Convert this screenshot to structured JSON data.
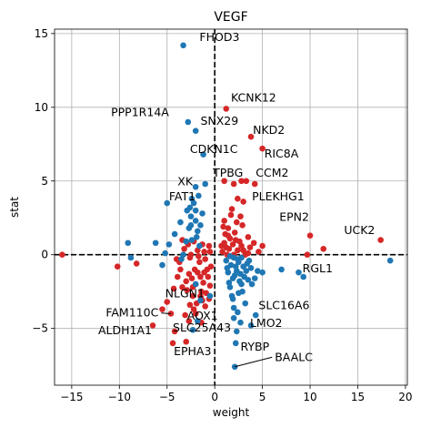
{
  "chart_data": {
    "type": "scatter",
    "title": "VEGF",
    "xlabel": "weight",
    "ylabel": "stat",
    "xlim": [
      -16.8,
      20.2
    ],
    "ylim": [
      -8.85,
      15.3
    ],
    "xticks": [
      -15,
      -10,
      -5,
      0,
      5,
      10,
      15,
      20
    ],
    "yticks": [
      -5,
      0,
      5,
      10,
      15
    ],
    "grid": true,
    "reference_lines": {
      "x": 0,
      "y": 0,
      "style": "dashed"
    },
    "colors": {
      "red": "#d62728",
      "blue": "#1f77b4"
    },
    "labels": [
      {
        "text": "FHOD3",
        "x": -3.3,
        "y": 14.2,
        "tx": -1.6,
        "ty": 14.5,
        "anchor": "start"
      },
      {
        "text": "KCNK12",
        "x": 1.2,
        "y": 9.9,
        "tx": 1.7,
        "ty": 10.4,
        "anchor": "start"
      },
      {
        "text": "PPP1R14A",
        "x": -2.8,
        "y": 9.0,
        "tx": -4.8,
        "ty": 9.4,
        "anchor": "end"
      },
      {
        "text": "SNX29",
        "x": -2.0,
        "y": 8.4,
        "tx": -1.5,
        "ty": 8.8,
        "anchor": "start"
      },
      {
        "text": "NKD2",
        "x": 3.8,
        "y": 8.0,
        "tx": 4.0,
        "ty": 8.2,
        "anchor": "start"
      },
      {
        "text": "RIC8A",
        "x": 5.0,
        "y": 7.2,
        "tx": 5.2,
        "ty": 6.6,
        "anchor": "start"
      },
      {
        "text": "CDKN1C",
        "x": -1.2,
        "y": 6.8,
        "tx": -2.6,
        "ty": 6.9,
        "anchor": "start"
      },
      {
        "text": "TPBG",
        "x": 1.0,
        "y": 5.0,
        "tx": -0.2,
        "ty": 5.3,
        "anchor": "start"
      },
      {
        "text": "CCM2",
        "x": 2.8,
        "y": 5.0,
        "tx": 4.3,
        "ty": 5.3,
        "anchor": "start"
      },
      {
        "text": "XK",
        "x": -2.0,
        "y": 4.6,
        "tx": -3.9,
        "ty": 4.7,
        "anchor": "start"
      },
      {
        "text": "FAT1",
        "x": -2.4,
        "y": 3.8,
        "tx": -4.8,
        "ty": 3.7,
        "anchor": "start"
      },
      {
        "text": "PLEKHG1",
        "x": 3.0,
        "y": 3.6,
        "tx": 3.9,
        "ty": 3.7,
        "anchor": "start"
      },
      {
        "text": "EPN2",
        "x": 10.0,
        "y": 1.3,
        "tx": 9.9,
        "ty": 2.3,
        "anchor": "end"
      },
      {
        "text": "UCK2",
        "x": 17.4,
        "y": 1.0,
        "tx": 16.8,
        "ty": 1.4,
        "anchor": "end"
      },
      {
        "text": "RGL1",
        "x": 9.3,
        "y": -1.5,
        "tx": 9.2,
        "ty": -1.2,
        "anchor": "start"
      },
      {
        "text": "NLGN1",
        "x": -2.0,
        "y": -3.1,
        "tx": -5.2,
        "ty": -2.9,
        "anchor": "start"
      },
      {
        "text": "FAM110C",
        "x": -4.6,
        "y": -4.0,
        "tx": -5.9,
        "ty": -4.2,
        "anchor": "end",
        "leader": true
      },
      {
        "text": "SLC16A6",
        "x": 4.3,
        "y": -4.1,
        "tx": 4.6,
        "ty": -3.7,
        "anchor": "start"
      },
      {
        "text": "AOX1",
        "x": -1.5,
        "y": -4.2,
        "tx": -2.9,
        "ty": -4.4,
        "anchor": "start"
      },
      {
        "text": "LMO2",
        "x": 3.8,
        "y": -4.8,
        "tx": 3.7,
        "ty": -4.9,
        "anchor": "start"
      },
      {
        "text": "ALDH1A1",
        "x": -6.4,
        "y": -4.8,
        "tx": -6.6,
        "ty": -5.4,
        "anchor": "end"
      },
      {
        "text": "SLC25A43",
        "x": -2.3,
        "y": -5.1,
        "tx": -4.4,
        "ty": -5.2,
        "anchor": "start"
      },
      {
        "text": "RYBP",
        "x": 2.2,
        "y": -6.0,
        "tx": 2.7,
        "ty": -6.5,
        "anchor": "start"
      },
      {
        "text": "EPHA3",
        "x": -4.4,
        "y": -6.0,
        "tx": -4.3,
        "ty": -6.8,
        "anchor": "start"
      },
      {
        "text": "BAALC",
        "x": 2.1,
        "y": -7.6,
        "tx": 6.3,
        "ty": -7.2,
        "anchor": "start",
        "leader": true
      }
    ],
    "points": {
      "red": [
        [
          -16.0,
          0.0
        ],
        [
          -10.2,
          -0.8
        ],
        [
          -8.2,
          -0.6
        ],
        [
          -5.0,
          -3.2
        ],
        [
          -6.5,
          -4.8
        ],
        [
          -5.5,
          -3.7
        ],
        [
          -4.6,
          -4.0
        ],
        [
          -4.2,
          -5.2
        ],
        [
          -4.4,
          -6.0
        ],
        [
          -3.0,
          -5.9
        ],
        [
          -3.1,
          -4.1
        ],
        [
          -2.6,
          -3.4
        ],
        [
          -2.3,
          -2.8
        ],
        [
          -2.0,
          -2.0
        ],
        [
          -1.4,
          -2.5
        ],
        [
          -1.0,
          -3.5
        ],
        [
          -1.5,
          -1.5
        ],
        [
          -2.6,
          -0.2
        ],
        [
          -3.4,
          1.0
        ],
        [
          -3.6,
          -1.0
        ],
        [
          -3.0,
          -1.8
        ],
        [
          -2.7,
          -1.3
        ],
        [
          -2.1,
          -1.0
        ],
        [
          -1.6,
          -0.5
        ],
        [
          -1.1,
          0.2
        ],
        [
          -0.8,
          -1.0
        ],
        [
          -0.5,
          -2.1
        ],
        [
          -0.6,
          0.6
        ],
        [
          -1.3,
          0.7
        ],
        [
          -1.8,
          0.3
        ],
        [
          -2.2,
          0.9
        ],
        [
          -3.2,
          0.4
        ],
        [
          -4.0,
          -0.3
        ],
        [
          -2.9,
          -2.4
        ],
        [
          -1.9,
          -3.3
        ],
        [
          -1.2,
          -1.9
        ],
        [
          -0.7,
          -1.5
        ],
        [
          -0.4,
          -0.8
        ],
        [
          -1.5,
          -2.8
        ],
        [
          -2.4,
          -1.6
        ],
        [
          -1.0,
          -0.3
        ],
        [
          -1.8,
          -1.2
        ],
        [
          -2.5,
          0.0
        ],
        [
          -0.9,
          -2.6
        ],
        [
          -3.4,
          -2.2
        ],
        [
          -2.0,
          -4.0
        ],
        [
          -1.4,
          -4.6
        ],
        [
          -2.7,
          -4.5
        ],
        [
          -0.6,
          -3.0
        ],
        [
          -1.7,
          -0.1
        ],
        [
          -3.7,
          -0.5
        ],
        [
          -2.3,
          -2.2
        ],
        [
          -1.1,
          -1.2
        ],
        [
          -0.5,
          0.2
        ],
        [
          -4.3,
          -2.3
        ],
        [
          -3.9,
          -1.5
        ],
        [
          -2.2,
          -3.7
        ],
        [
          -1.3,
          -3.1
        ],
        [
          -2.8,
          0.7
        ],
        [
          1.2,
          9.9
        ],
        [
          3.8,
          8.0
        ],
        [
          5.0,
          7.2
        ],
        [
          2.8,
          5.0
        ],
        [
          3.3,
          5.0
        ],
        [
          4.2,
          4.8
        ],
        [
          1.0,
          5.0
        ],
        [
          2.0,
          4.8
        ],
        [
          2.4,
          3.8
        ],
        [
          3.0,
          3.6
        ],
        [
          1.8,
          3.1
        ],
        [
          2.7,
          2.6
        ],
        [
          1.0,
          2.3
        ],
        [
          1.4,
          1.8
        ],
        [
          2.9,
          2.0
        ],
        [
          3.5,
          1.2
        ],
        [
          4.1,
          0.8
        ],
        [
          5.0,
          0.6
        ],
        [
          4.6,
          0.2
        ],
        [
          3.7,
          0.5
        ],
        [
          3.2,
          0.0
        ],
        [
          2.6,
          0.9
        ],
        [
          2.1,
          1.5
        ],
        [
          1.6,
          1.1
        ],
        [
          1.0,
          0.8
        ],
        [
          0.8,
          0.2
        ],
        [
          1.3,
          0.0
        ],
        [
          2.4,
          0.3
        ],
        [
          1.9,
          0.7
        ],
        [
          1.1,
          1.4
        ],
        [
          0.9,
          1.9
        ],
        [
          2.3,
          2.2
        ],
        [
          1.7,
          2.7
        ],
        [
          2.0,
          0.0
        ],
        [
          3.0,
          0.3
        ],
        [
          1.5,
          0.4
        ],
        [
          1.2,
          0.5
        ],
        [
          2.8,
          0.6
        ],
        [
          3.5,
          0.1
        ],
        [
          0.7,
          0.6
        ],
        [
          1.4,
          1.3
        ],
        [
          2.2,
          1.0
        ],
        [
          10.0,
          1.3
        ],
        [
          9.7,
          0.0
        ],
        [
          11.4,
          0.4
        ],
        [
          17.4,
          1.0
        ]
      ],
      "blue": [
        [
          -3.3,
          14.2
        ],
        [
          -2.8,
          9.0
        ],
        [
          -2.0,
          8.4
        ],
        [
          -1.2,
          6.8
        ],
        [
          -2.0,
          4.6
        ],
        [
          -2.4,
          3.8
        ],
        [
          -5.0,
          3.5
        ],
        [
          -2.9,
          3.0
        ],
        [
          -2.5,
          2.6
        ],
        [
          -2.0,
          2.3
        ],
        [
          -1.5,
          2.0
        ],
        [
          -2.7,
          1.8
        ],
        [
          -1.9,
          1.2
        ],
        [
          -3.0,
          0.9
        ],
        [
          -1.6,
          0.6
        ],
        [
          -2.2,
          3.5
        ],
        [
          -1.7,
          4.0
        ],
        [
          -3.6,
          2.2
        ],
        [
          -4.2,
          1.4
        ],
        [
          -4.8,
          0.7
        ],
        [
          -5.2,
          0.1
        ],
        [
          -3.5,
          -0.3
        ],
        [
          -5.5,
          -0.7
        ],
        [
          -9.1,
          0.8
        ],
        [
          -8.8,
          -0.2
        ],
        [
          -6.2,
          0.8
        ],
        [
          -1.3,
          2.8
        ],
        [
          -2.4,
          1.0
        ],
        [
          -1.0,
          4.8
        ],
        [
          -2.0,
          3.0
        ],
        [
          -2.5,
          2.0
        ],
        [
          -1.8,
          1.6
        ],
        [
          -2.6,
          3.2
        ],
        [
          -3.3,
          0.0
        ],
        [
          -2.0,
          -2.0
        ],
        [
          -1.5,
          -3.1
        ],
        [
          -1.8,
          -4.5
        ],
        [
          -2.3,
          -5.1
        ],
        [
          -0.5,
          -2.8
        ],
        [
          2.1,
          -7.6
        ],
        [
          2.2,
          -6.0
        ],
        [
          3.8,
          -4.8
        ],
        [
          4.3,
          -4.1
        ],
        [
          2.3,
          -5.2
        ],
        [
          2.7,
          -4.6
        ],
        [
          2.0,
          -3.6
        ],
        [
          3.2,
          -3.3
        ],
        [
          2.5,
          -2.6
        ],
        [
          1.6,
          -2.2
        ],
        [
          2.8,
          -2.0
        ],
        [
          3.5,
          -1.7
        ],
        [
          1.9,
          -1.6
        ],
        [
          1.4,
          -1.2
        ],
        [
          2.3,
          -1.1
        ],
        [
          3.0,
          -0.8
        ],
        [
          1.7,
          -0.7
        ],
        [
          2.5,
          -0.5
        ],
        [
          3.6,
          -0.4
        ],
        [
          2.0,
          -0.2
        ],
        [
          1.2,
          -0.4
        ],
        [
          2.7,
          -1.3
        ],
        [
          2.2,
          -0.8
        ],
        [
          1.5,
          -1.9
        ],
        [
          3.3,
          -1.1
        ],
        [
          1.8,
          -2.8
        ],
        [
          2.9,
          -2.5
        ],
        [
          2.6,
          -1.8
        ],
        [
          3.1,
          -1.5
        ],
        [
          1.3,
          -0.9
        ],
        [
          2.4,
          -0.3
        ],
        [
          3.8,
          -0.9
        ],
        [
          4.5,
          -1.1
        ],
        [
          5.0,
          -1.2
        ],
        [
          4.2,
          -1.6
        ],
        [
          3.9,
          -2.0
        ],
        [
          1.6,
          -0.1
        ],
        [
          2.1,
          -1.4
        ],
        [
          3.4,
          -0.6
        ],
        [
          2.8,
          -0.2
        ],
        [
          1.9,
          -3.0
        ],
        [
          2.4,
          -3.9
        ],
        [
          2.0,
          -4.3
        ],
        [
          7.0,
          -1.0
        ],
        [
          8.8,
          -1.2
        ],
        [
          9.3,
          -1.5
        ],
        [
          18.4,
          -0.4
        ]
      ]
    }
  }
}
